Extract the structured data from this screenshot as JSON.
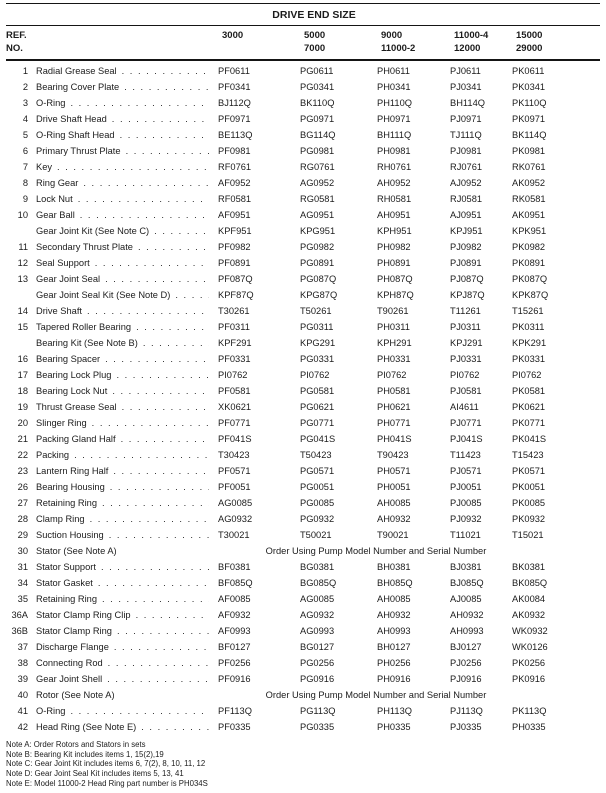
{
  "header": {
    "title": "DRIVE END SIZE",
    "ref_label_line1": "REF.",
    "ref_label_line2": "NO.",
    "columns": [
      {
        "line1": "3000",
        "line2": ""
      },
      {
        "line1": "5000",
        "line2": "7000"
      },
      {
        "line1": "9000",
        "line2": "11000-2"
      },
      {
        "line1": "11000-4",
        "line2": "12000"
      },
      {
        "line1": "15000",
        "line2": "29000"
      }
    ]
  },
  "rows": [
    {
      "ref": "1",
      "name": "Radial Grease Seal",
      "parts": [
        "PF0611",
        "PG0611",
        "PH0611",
        "PJ0611",
        "PK0611"
      ]
    },
    {
      "ref": "2",
      "name": "Bearing Cover Plate",
      "parts": [
        "PF0341",
        "PG0341",
        "PH0341",
        "PJ0341",
        "PK0341"
      ]
    },
    {
      "ref": "3",
      "name": "O-Ring",
      "parts": [
        "BJ112Q",
        "BK110Q",
        "PH110Q",
        "BH114Q",
        "PK110Q"
      ]
    },
    {
      "ref": "4",
      "name": "Drive Shaft Head",
      "parts": [
        "PF0971",
        "PG0971",
        "PH0971",
        "PJ0971",
        "PK0971"
      ]
    },
    {
      "ref": "5",
      "name": "O-Ring Shaft Head",
      "parts": [
        "BE113Q",
        "BG114Q",
        "BH111Q",
        "TJ111Q",
        "BK114Q"
      ]
    },
    {
      "ref": "6",
      "name": "Primary Thrust Plate",
      "parts": [
        "PF0981",
        "PG0981",
        "PH0981",
        "PJ0981",
        "PK0981"
      ]
    },
    {
      "ref": "7",
      "name": "Key",
      "parts": [
        "RF0761",
        "RG0761",
        "RH0761",
        "RJ0761",
        "RK0761"
      ]
    },
    {
      "ref": "8",
      "name": "Ring Gear",
      "parts": [
        "AF0952",
        "AG0952",
        "AH0952",
        "AJ0952",
        "AK0952"
      ]
    },
    {
      "ref": "9",
      "name": "Lock Nut",
      "parts": [
        "RF0581",
        "RG0581",
        "RH0581",
        "RJ0581",
        "RK0581"
      ]
    },
    {
      "ref": "10",
      "name": "Gear Ball",
      "parts": [
        "AF0951",
        "AG0951",
        "AH0951",
        "AJ0951",
        "AK0951"
      ]
    },
    {
      "ref": "",
      "name": "Gear Joint Kit (See Note C)",
      "parts": [
        "KPF951",
        "KPG951",
        "KPH951",
        "KPJ951",
        "KPK951"
      ]
    },
    {
      "ref": "11",
      "name": "Secondary Thrust Plate",
      "parts": [
        "PF0982",
        "PG0982",
        "PH0982",
        "PJ0982",
        "PK0982"
      ]
    },
    {
      "ref": "12",
      "name": "Seal Support",
      "parts": [
        "PF0891",
        "PG0891",
        "PH0891",
        "PJ0891",
        "PK0891"
      ]
    },
    {
      "ref": "13",
      "name": "Gear Joint Seal",
      "parts": [
        "PF087Q",
        "PG087Q",
        "PH087Q",
        "PJ087Q",
        "PK087Q"
      ]
    },
    {
      "ref": "",
      "name": "Gear Joint Seal Kit (See Note D)",
      "parts": [
        "KPF87Q",
        "KPG87Q",
        "KPH87Q",
        "KPJ87Q",
        "KPK87Q"
      ]
    },
    {
      "ref": "14",
      "name": "Drive Shaft",
      "parts": [
        "T30261",
        "T50261",
        "T90261",
        "T11261",
        "T15261"
      ]
    },
    {
      "ref": "15",
      "name": "Tapered Roller Bearing",
      "parts": [
        "PF0311",
        "PG0311",
        "PH0311",
        "PJ0311",
        "PK0311"
      ]
    },
    {
      "ref": "",
      "name": "Bearing Kit (See Note B)",
      "parts": [
        "KPF291",
        "KPG291",
        "KPH291",
        "KPJ291",
        "KPK291"
      ]
    },
    {
      "ref": "16",
      "name": "Bearing Spacer",
      "parts": [
        "PF0331",
        "PG0331",
        "PH0331",
        "PJ0331",
        "PK0331"
      ]
    },
    {
      "ref": "17",
      "name": "Bearing Lock Plug",
      "parts": [
        "PI0762",
        "PI0762",
        "PI0762",
        "PI0762",
        "PI0762"
      ]
    },
    {
      "ref": "18",
      "name": "Bearing Lock Nut",
      "parts": [
        "PF0581",
        "PG0581",
        "PH0581",
        "PJ0581",
        "PK0581"
      ]
    },
    {
      "ref": "19",
      "name": "Thrust Grease Seal",
      "parts": [
        "XK0621",
        "PG0621",
        "PH0621",
        "AI4611",
        "PK0621"
      ]
    },
    {
      "ref": "20",
      "name": "Slinger Ring",
      "parts": [
        "PF0771",
        "PG0771",
        "PH0771",
        "PJ0771",
        "PK0771"
      ]
    },
    {
      "ref": "21",
      "name": "Packing Gland Half",
      "parts": [
        "PF041S",
        "PG041S",
        "PH041S",
        "PJ041S",
        "PK041S"
      ]
    },
    {
      "ref": "22",
      "name": "Packing",
      "parts": [
        "T30423",
        "T50423",
        "T90423",
        "T11423",
        "T15423"
      ]
    },
    {
      "ref": "23",
      "name": "Lantern Ring Half",
      "parts": [
        "PF0571",
        "PG0571",
        "PH0571",
        "PJ0571",
        "PK0571"
      ]
    },
    {
      "ref": "26",
      "name": "Bearing Housing",
      "parts": [
        "PF0051",
        "PG0051",
        "PH0051",
        "PJ0051",
        "PK0051"
      ]
    },
    {
      "ref": "27",
      "name": "Retaining Ring",
      "parts": [
        "AG0085",
        "PG0085",
        "AH0085",
        "PJ0085",
        "PK0085"
      ]
    },
    {
      "ref": "28",
      "name": "Clamp Ring",
      "parts": [
        "AG0932",
        "PG0932",
        "AH0932",
        "PJ0932",
        "PK0932"
      ]
    },
    {
      "ref": "29",
      "name": "Suction Housing",
      "parts": [
        "T30021",
        "T50021",
        "T90021",
        "T11021",
        "T15021"
      ]
    },
    {
      "ref": "30",
      "name": "Stator (See Note A)",
      "span": "Order Using Pump Model Number and Serial Number"
    },
    {
      "ref": "31",
      "name": "Stator Support",
      "parts": [
        "BF0381",
        "BG0381",
        "BH0381",
        "BJ0381",
        "BK0381"
      ]
    },
    {
      "ref": "34",
      "name": "Stator Gasket",
      "parts": [
        "BF085Q",
        "BG085Q",
        "BH085Q",
        "BJ085Q",
        "BK085Q"
      ]
    },
    {
      "ref": "35",
      "name": "Retaining Ring",
      "parts": [
        "AF0085",
        "AG0085",
        "AH0085",
        "AJ0085",
        "AK0084"
      ]
    },
    {
      "ref": "36A",
      "name": "Stator Clamp Ring Clip",
      "parts": [
        "AF0932",
        "AG0932",
        "AH0932",
        "AH0932",
        "AK0932"
      ]
    },
    {
      "ref": "36B",
      "name": "Stator Clamp Ring",
      "parts": [
        "AF0993",
        "AG0993",
        "AH0993",
        "AH0993",
        "WK0932"
      ]
    },
    {
      "ref": "37",
      "name": "Discharge Flange",
      "parts": [
        "BF0127",
        "BG0127",
        "BH0127",
        "BJ0127",
        "WK0126"
      ]
    },
    {
      "ref": "38",
      "name": "Connecting Rod",
      "parts": [
        "PF0256",
        "PG0256",
        "PH0256",
        "PJ0256",
        "PK0256"
      ]
    },
    {
      "ref": "39",
      "name": "Gear Joint Shell",
      "parts": [
        "PF0916",
        "PG0916",
        "PH0916",
        "PJ0916",
        "PK0916"
      ]
    },
    {
      "ref": "40",
      "name": "Rotor (See Note A)",
      "span": "Order Using Pump Model Number and Serial Number"
    },
    {
      "ref": "41",
      "name": "O-Ring",
      "parts": [
        "PF113Q",
        "PG113Q",
        "PH113Q",
        "PJ113Q",
        "PK113Q"
      ]
    },
    {
      "ref": "42",
      "name": "Head Ring (See Note E)",
      "parts": [
        "PF0335",
        "PG0335",
        "PH0335",
        "PJ0335",
        "PH0335"
      ]
    }
  ],
  "notes": [
    "Note A: Order Rotors and Stators in sets",
    "Note B: Bearing Kit includes items 1, 15(2),19",
    "Note C: Gear Joint Kit includes items 6, 7(2), 8, 10, 11, 12",
    "Note D: Gear Joint Seal Kit includes items 5, 13, 41",
    "Note E: Model 11000-2 Head Ring part number is PH034S"
  ]
}
